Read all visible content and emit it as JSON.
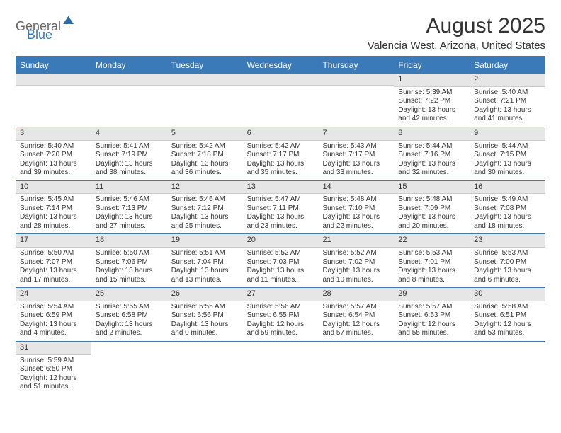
{
  "logo": {
    "text1": "General",
    "text2": "Blue"
  },
  "title": "August 2025",
  "location": "Valencia West, Arizona, United States",
  "colors": {
    "header_bg": "#3b7ab8",
    "header_text": "#ffffff",
    "daynum_bg": "#e6e6e6",
    "border": "#3b7ab8",
    "text": "#333333"
  },
  "dayNames": [
    "Sunday",
    "Monday",
    "Tuesday",
    "Wednesday",
    "Thursday",
    "Friday",
    "Saturday"
  ],
  "weeks": [
    [
      {
        "n": null
      },
      {
        "n": null
      },
      {
        "n": null
      },
      {
        "n": null
      },
      {
        "n": null
      },
      {
        "n": "1",
        "sr": "Sunrise: 5:39 AM",
        "ss": "Sunset: 7:22 PM",
        "dl": "Daylight: 13 hours and 42 minutes."
      },
      {
        "n": "2",
        "sr": "Sunrise: 5:40 AM",
        "ss": "Sunset: 7:21 PM",
        "dl": "Daylight: 13 hours and 41 minutes."
      }
    ],
    [
      {
        "n": "3",
        "sr": "Sunrise: 5:40 AM",
        "ss": "Sunset: 7:20 PM",
        "dl": "Daylight: 13 hours and 39 minutes."
      },
      {
        "n": "4",
        "sr": "Sunrise: 5:41 AM",
        "ss": "Sunset: 7:19 PM",
        "dl": "Daylight: 13 hours and 38 minutes."
      },
      {
        "n": "5",
        "sr": "Sunrise: 5:42 AM",
        "ss": "Sunset: 7:18 PM",
        "dl": "Daylight: 13 hours and 36 minutes."
      },
      {
        "n": "6",
        "sr": "Sunrise: 5:42 AM",
        "ss": "Sunset: 7:17 PM",
        "dl": "Daylight: 13 hours and 35 minutes."
      },
      {
        "n": "7",
        "sr": "Sunrise: 5:43 AM",
        "ss": "Sunset: 7:17 PM",
        "dl": "Daylight: 13 hours and 33 minutes."
      },
      {
        "n": "8",
        "sr": "Sunrise: 5:44 AM",
        "ss": "Sunset: 7:16 PM",
        "dl": "Daylight: 13 hours and 32 minutes."
      },
      {
        "n": "9",
        "sr": "Sunrise: 5:44 AM",
        "ss": "Sunset: 7:15 PM",
        "dl": "Daylight: 13 hours and 30 minutes."
      }
    ],
    [
      {
        "n": "10",
        "sr": "Sunrise: 5:45 AM",
        "ss": "Sunset: 7:14 PM",
        "dl": "Daylight: 13 hours and 28 minutes."
      },
      {
        "n": "11",
        "sr": "Sunrise: 5:46 AM",
        "ss": "Sunset: 7:13 PM",
        "dl": "Daylight: 13 hours and 27 minutes."
      },
      {
        "n": "12",
        "sr": "Sunrise: 5:46 AM",
        "ss": "Sunset: 7:12 PM",
        "dl": "Daylight: 13 hours and 25 minutes."
      },
      {
        "n": "13",
        "sr": "Sunrise: 5:47 AM",
        "ss": "Sunset: 7:11 PM",
        "dl": "Daylight: 13 hours and 23 minutes."
      },
      {
        "n": "14",
        "sr": "Sunrise: 5:48 AM",
        "ss": "Sunset: 7:10 PM",
        "dl": "Daylight: 13 hours and 22 minutes."
      },
      {
        "n": "15",
        "sr": "Sunrise: 5:48 AM",
        "ss": "Sunset: 7:09 PM",
        "dl": "Daylight: 13 hours and 20 minutes."
      },
      {
        "n": "16",
        "sr": "Sunrise: 5:49 AM",
        "ss": "Sunset: 7:08 PM",
        "dl": "Daylight: 13 hours and 18 minutes."
      }
    ],
    [
      {
        "n": "17",
        "sr": "Sunrise: 5:50 AM",
        "ss": "Sunset: 7:07 PM",
        "dl": "Daylight: 13 hours and 17 minutes."
      },
      {
        "n": "18",
        "sr": "Sunrise: 5:50 AM",
        "ss": "Sunset: 7:06 PM",
        "dl": "Daylight: 13 hours and 15 minutes."
      },
      {
        "n": "19",
        "sr": "Sunrise: 5:51 AM",
        "ss": "Sunset: 7:04 PM",
        "dl": "Daylight: 13 hours and 13 minutes."
      },
      {
        "n": "20",
        "sr": "Sunrise: 5:52 AM",
        "ss": "Sunset: 7:03 PM",
        "dl": "Daylight: 13 hours and 11 minutes."
      },
      {
        "n": "21",
        "sr": "Sunrise: 5:52 AM",
        "ss": "Sunset: 7:02 PM",
        "dl": "Daylight: 13 hours and 10 minutes."
      },
      {
        "n": "22",
        "sr": "Sunrise: 5:53 AM",
        "ss": "Sunset: 7:01 PM",
        "dl": "Daylight: 13 hours and 8 minutes."
      },
      {
        "n": "23",
        "sr": "Sunrise: 5:53 AM",
        "ss": "Sunset: 7:00 PM",
        "dl": "Daylight: 13 hours and 6 minutes."
      }
    ],
    [
      {
        "n": "24",
        "sr": "Sunrise: 5:54 AM",
        "ss": "Sunset: 6:59 PM",
        "dl": "Daylight: 13 hours and 4 minutes."
      },
      {
        "n": "25",
        "sr": "Sunrise: 5:55 AM",
        "ss": "Sunset: 6:58 PM",
        "dl": "Daylight: 13 hours and 2 minutes."
      },
      {
        "n": "26",
        "sr": "Sunrise: 5:55 AM",
        "ss": "Sunset: 6:56 PM",
        "dl": "Daylight: 13 hours and 0 minutes."
      },
      {
        "n": "27",
        "sr": "Sunrise: 5:56 AM",
        "ss": "Sunset: 6:55 PM",
        "dl": "Daylight: 12 hours and 59 minutes."
      },
      {
        "n": "28",
        "sr": "Sunrise: 5:57 AM",
        "ss": "Sunset: 6:54 PM",
        "dl": "Daylight: 12 hours and 57 minutes."
      },
      {
        "n": "29",
        "sr": "Sunrise: 5:57 AM",
        "ss": "Sunset: 6:53 PM",
        "dl": "Daylight: 12 hours and 55 minutes."
      },
      {
        "n": "30",
        "sr": "Sunrise: 5:58 AM",
        "ss": "Sunset: 6:51 PM",
        "dl": "Daylight: 12 hours and 53 minutes."
      }
    ],
    [
      {
        "n": "31",
        "sr": "Sunrise: 5:59 AM",
        "ss": "Sunset: 6:50 PM",
        "dl": "Daylight: 12 hours and 51 minutes."
      },
      {
        "n": null
      },
      {
        "n": null
      },
      {
        "n": null
      },
      {
        "n": null
      },
      {
        "n": null
      },
      {
        "n": null
      }
    ]
  ]
}
